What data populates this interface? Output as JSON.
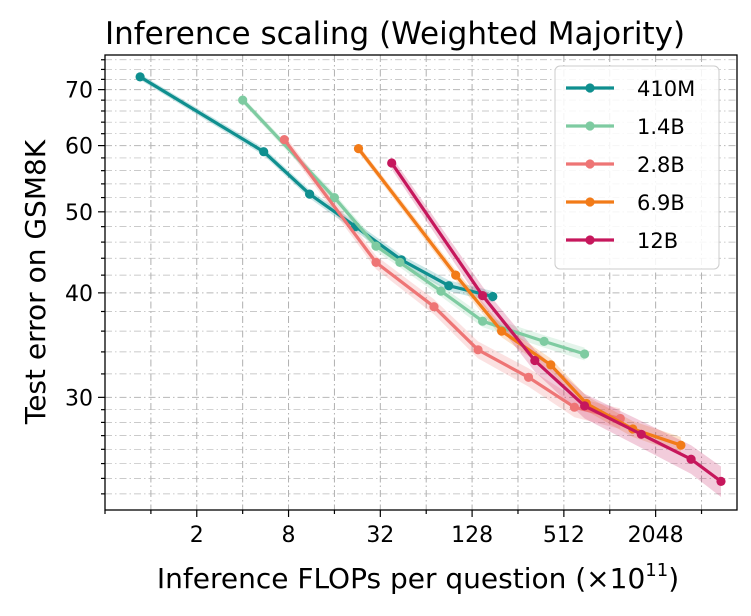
{
  "chart_data": {
    "type": "line",
    "title": "Inference scaling (Weighted Majority)",
    "xlabel": "Inference FLOPs per question (×10",
    "xlabel_exponent": "11",
    "xlabel_suffix": ")",
    "ylabel": "Test error on GSM8K",
    "x_scale": "log2",
    "y_scale": "log",
    "xlim": [
      0.5,
      7000
    ],
    "ylim": [
      22,
      77
    ],
    "x_ticks": [
      {
        "value": 2,
        "label": "2"
      },
      {
        "value": 8,
        "label": "8"
      },
      {
        "value": 32,
        "label": "32"
      },
      {
        "value": 128,
        "label": "128"
      },
      {
        "value": 512,
        "label": "512"
      },
      {
        "value": 2048,
        "label": "2048"
      }
    ],
    "y_ticks": [
      {
        "value": 30,
        "label": "30"
      },
      {
        "value": 40,
        "label": "40"
      },
      {
        "value": 50,
        "label": "50"
      },
      {
        "value": 60,
        "label": "60"
      },
      {
        "value": 70,
        "label": "70"
      }
    ],
    "grid": true,
    "legend_position": "top-right",
    "series": [
      {
        "name": "410M",
        "color": "#0f8f8f",
        "x": [
          0.85,
          5.5,
          11,
          22,
          44,
          90,
          175
        ],
        "y": [
          72.5,
          59,
          52.5,
          48,
          43.8,
          40.8,
          39.6
        ],
        "band": 0.6
      },
      {
        "name": "1.4B",
        "color": "#7ecba1",
        "x": [
          4,
          16,
          30,
          43,
          80,
          150,
          380,
          700
        ],
        "y": [
          68,
          52,
          45.5,
          43.5,
          40.2,
          37,
          35,
          33.8
        ],
        "band": 0.6
      },
      {
        "name": "2.8B",
        "color": "#ee7575",
        "x": [
          7.5,
          30,
          72,
          140,
          300,
          600,
          1200
        ],
        "y": [
          61,
          43.5,
          38.5,
          34.2,
          31.7,
          29.2,
          28.3
        ],
        "band": 0.8
      },
      {
        "name": "6.9B",
        "color": "#f27b18",
        "x": [
          23,
          100,
          200,
          420,
          720,
          1450,
          3000
        ],
        "y": [
          59.5,
          42,
          36,
          32.8,
          29.5,
          27.5,
          26.3
        ],
        "band": 0.6
      },
      {
        "name": "12B",
        "color": "#c6175c",
        "x": [
          38,
          150,
          330,
          700,
          1650,
          3500,
          5500
        ],
        "y": [
          57.2,
          39.7,
          33.2,
          29.3,
          27.1,
          25.3,
          23.8
        ],
        "band": 1.0
      }
    ]
  }
}
